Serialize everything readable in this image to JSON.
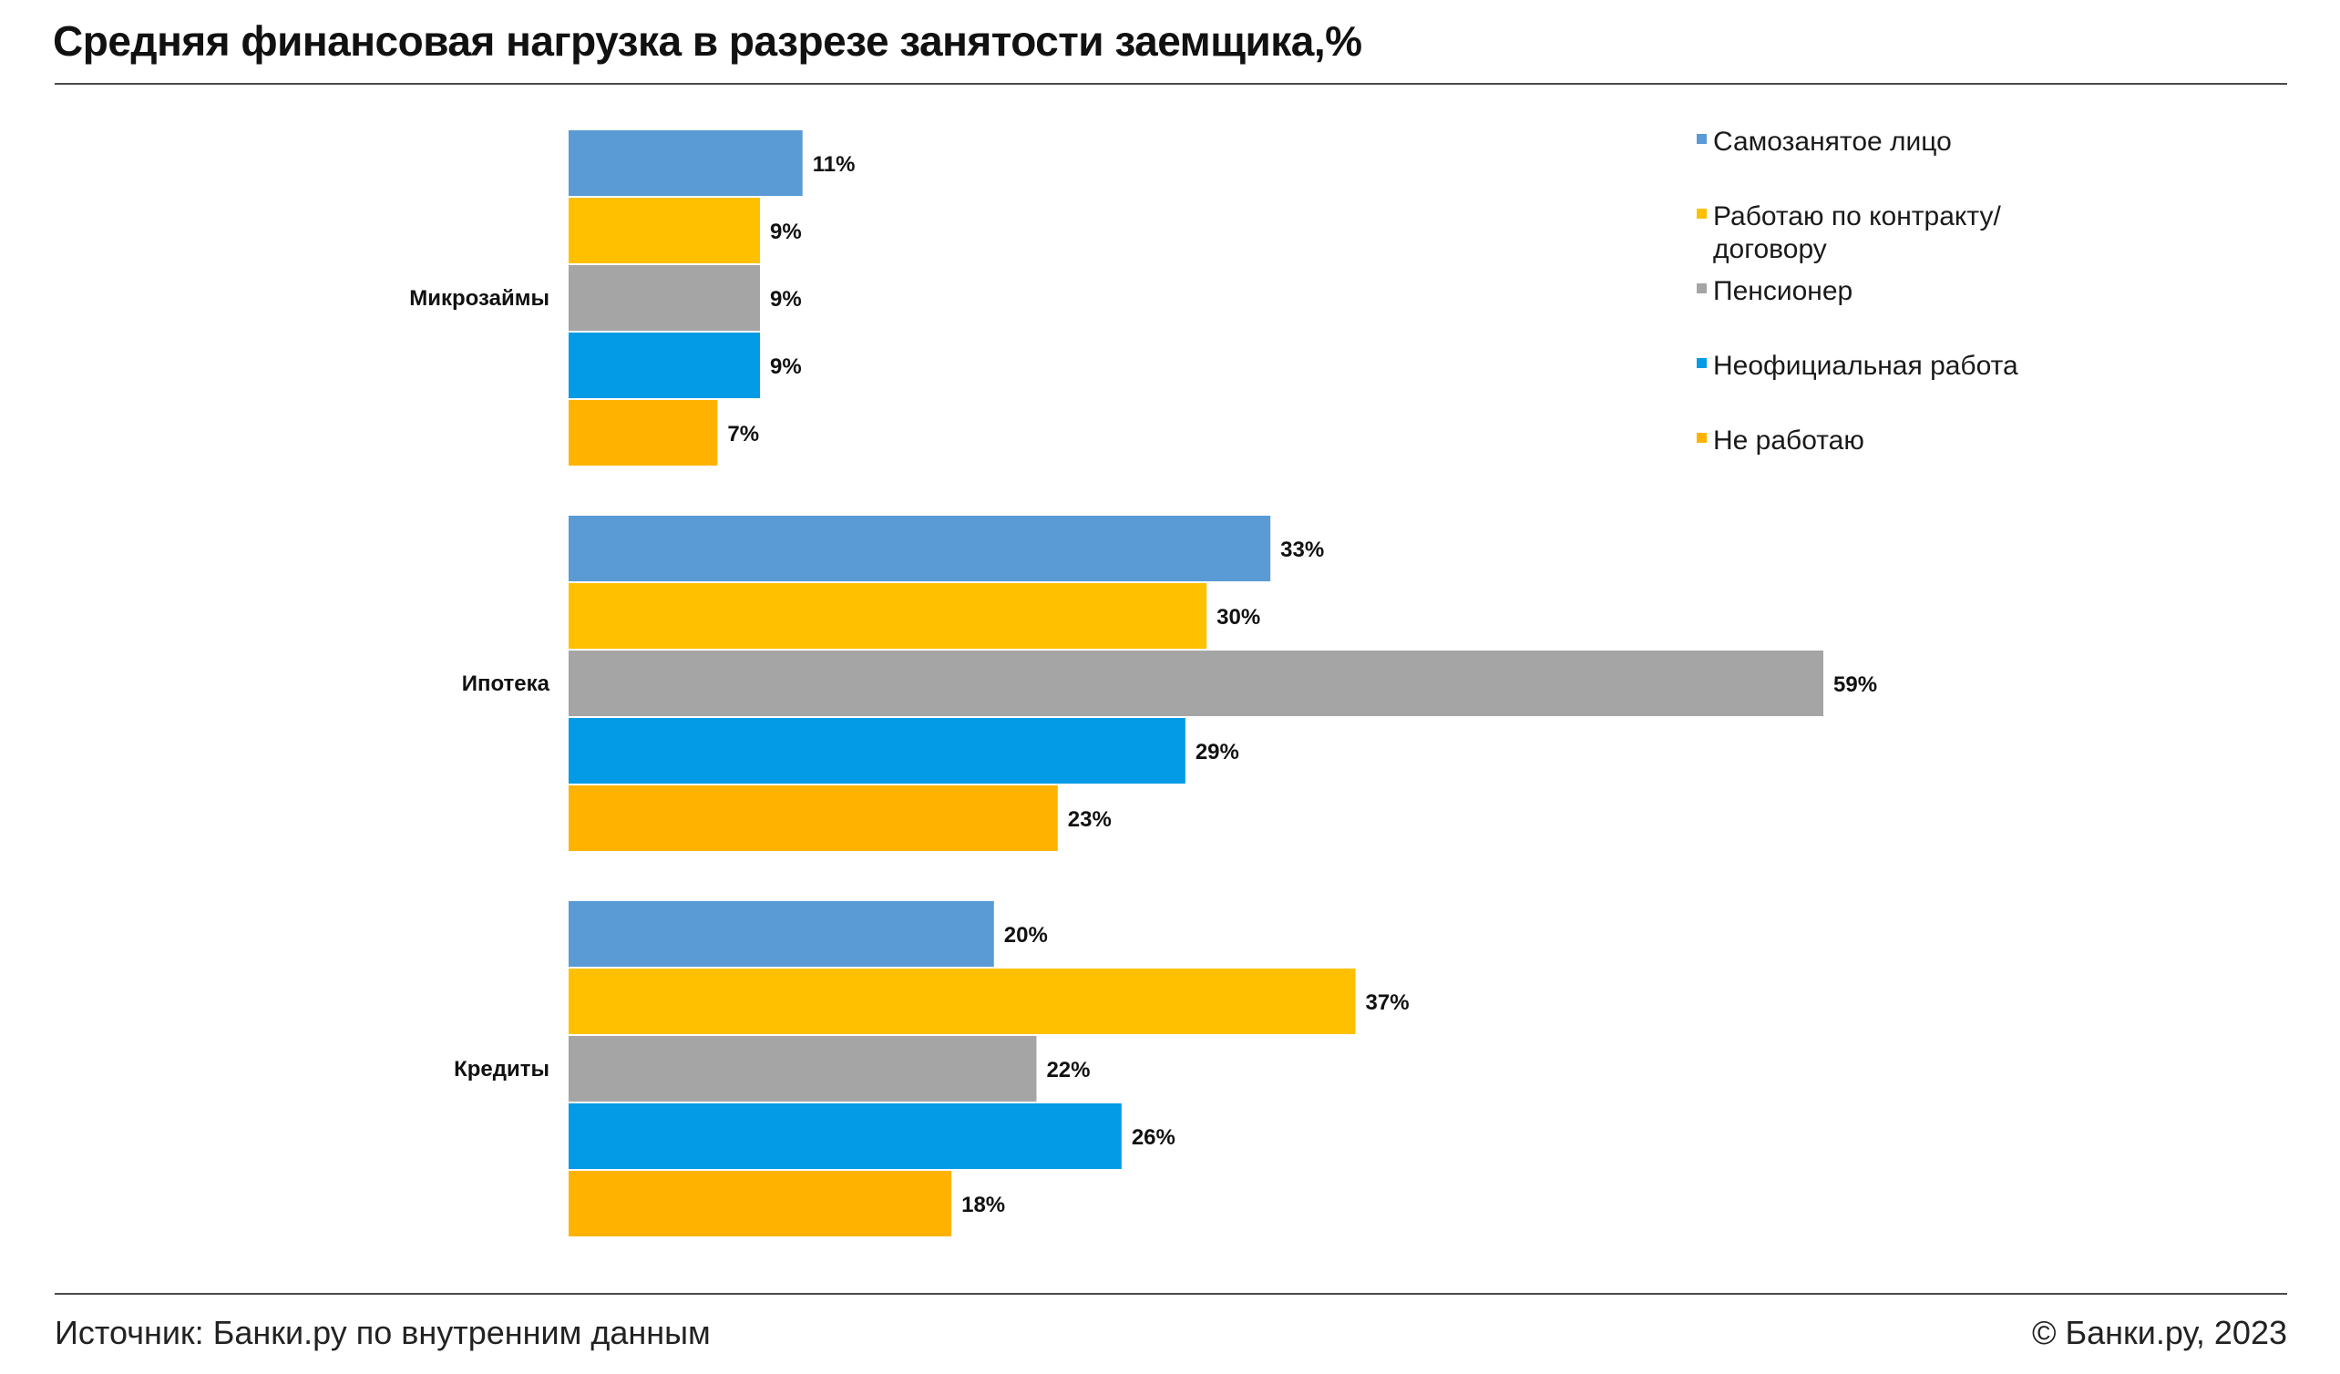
{
  "title": "Средняя финансовая нагрузка в разрезе занятости заемщика,%",
  "footer": {
    "source": "Источник: Банки.ру по внутренним данным",
    "copyright": "© Банки.ру, 2023"
  },
  "chart_data": {
    "type": "bar",
    "orientation": "horizontal",
    "categories": [
      "Микрозаймы",
      "Ипотека",
      "Кредиты"
    ],
    "series": [
      {
        "name": "Самозанятое лицо",
        "color": "#5b9bd5",
        "values": [
          11,
          33,
          20
        ],
        "labels": [
          "11%",
          "33%",
          "20%"
        ]
      },
      {
        "name": "Работаю по контракту/договору",
        "color": "#ffc000",
        "values": [
          9,
          30,
          37
        ],
        "labels": [
          "9%",
          "30%",
          "37%"
        ]
      },
      {
        "name": "Пенсионер",
        "color": "#a5a5a5",
        "values": [
          9,
          59,
          22
        ],
        "labels": [
          "9%",
          "59%",
          "22%"
        ]
      },
      {
        "name": "Неофициальная работа",
        "color": "#039be5",
        "values": [
          9,
          29,
          26
        ],
        "labels": [
          "9%",
          "29%",
          "26%"
        ]
      },
      {
        "name": "Не работаю",
        "color": "#ffb300",
        "values": [
          7,
          23,
          18
        ],
        "labels": [
          "7%",
          "23%",
          "18%"
        ]
      }
    ],
    "xlim": [
      0,
      60
    ],
    "grid": false,
    "legend_position": "top-right"
  }
}
